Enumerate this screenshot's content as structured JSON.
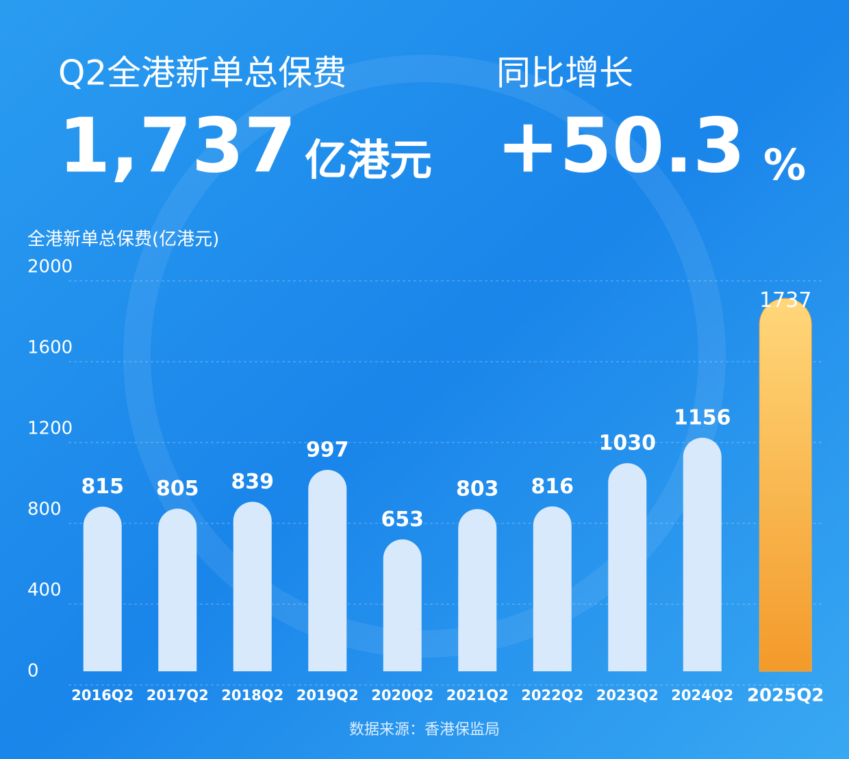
{
  "header": {
    "left_label": "Q2全港新单总保费",
    "left_number": "1,737",
    "left_unit": "亿港元",
    "right_label": "同比增长",
    "right_number": "+50.3",
    "right_unit": "%"
  },
  "chart_data": {
    "type": "bar",
    "y_label": "全港新单总保费(亿港元)",
    "categories": [
      "2016Q2",
      "2017Q2",
      "2018Q2",
      "2019Q2",
      "2020Q2",
      "2021Q2",
      "2022Q2",
      "2023Q2",
      "2024Q2",
      "2025Q2"
    ],
    "values": [
      815,
      805,
      839,
      997,
      653,
      803,
      816,
      1030,
      1156,
      1737
    ],
    "colors": [
      "#d8e9fb",
      "#d8e9fb",
      "#d8e9fb",
      "#d8e9fb",
      "#d8e9fb",
      "#d8e9fb",
      "#d8e9fb",
      "#d8e9fb",
      "#d8e9fb",
      "#f6a93a"
    ],
    "ylim": [
      0,
      2000
    ],
    "yticks": [
      0,
      400,
      800,
      1200,
      1600,
      2000
    ],
    "grid": true,
    "source": "数据来源：香港保监局"
  }
}
